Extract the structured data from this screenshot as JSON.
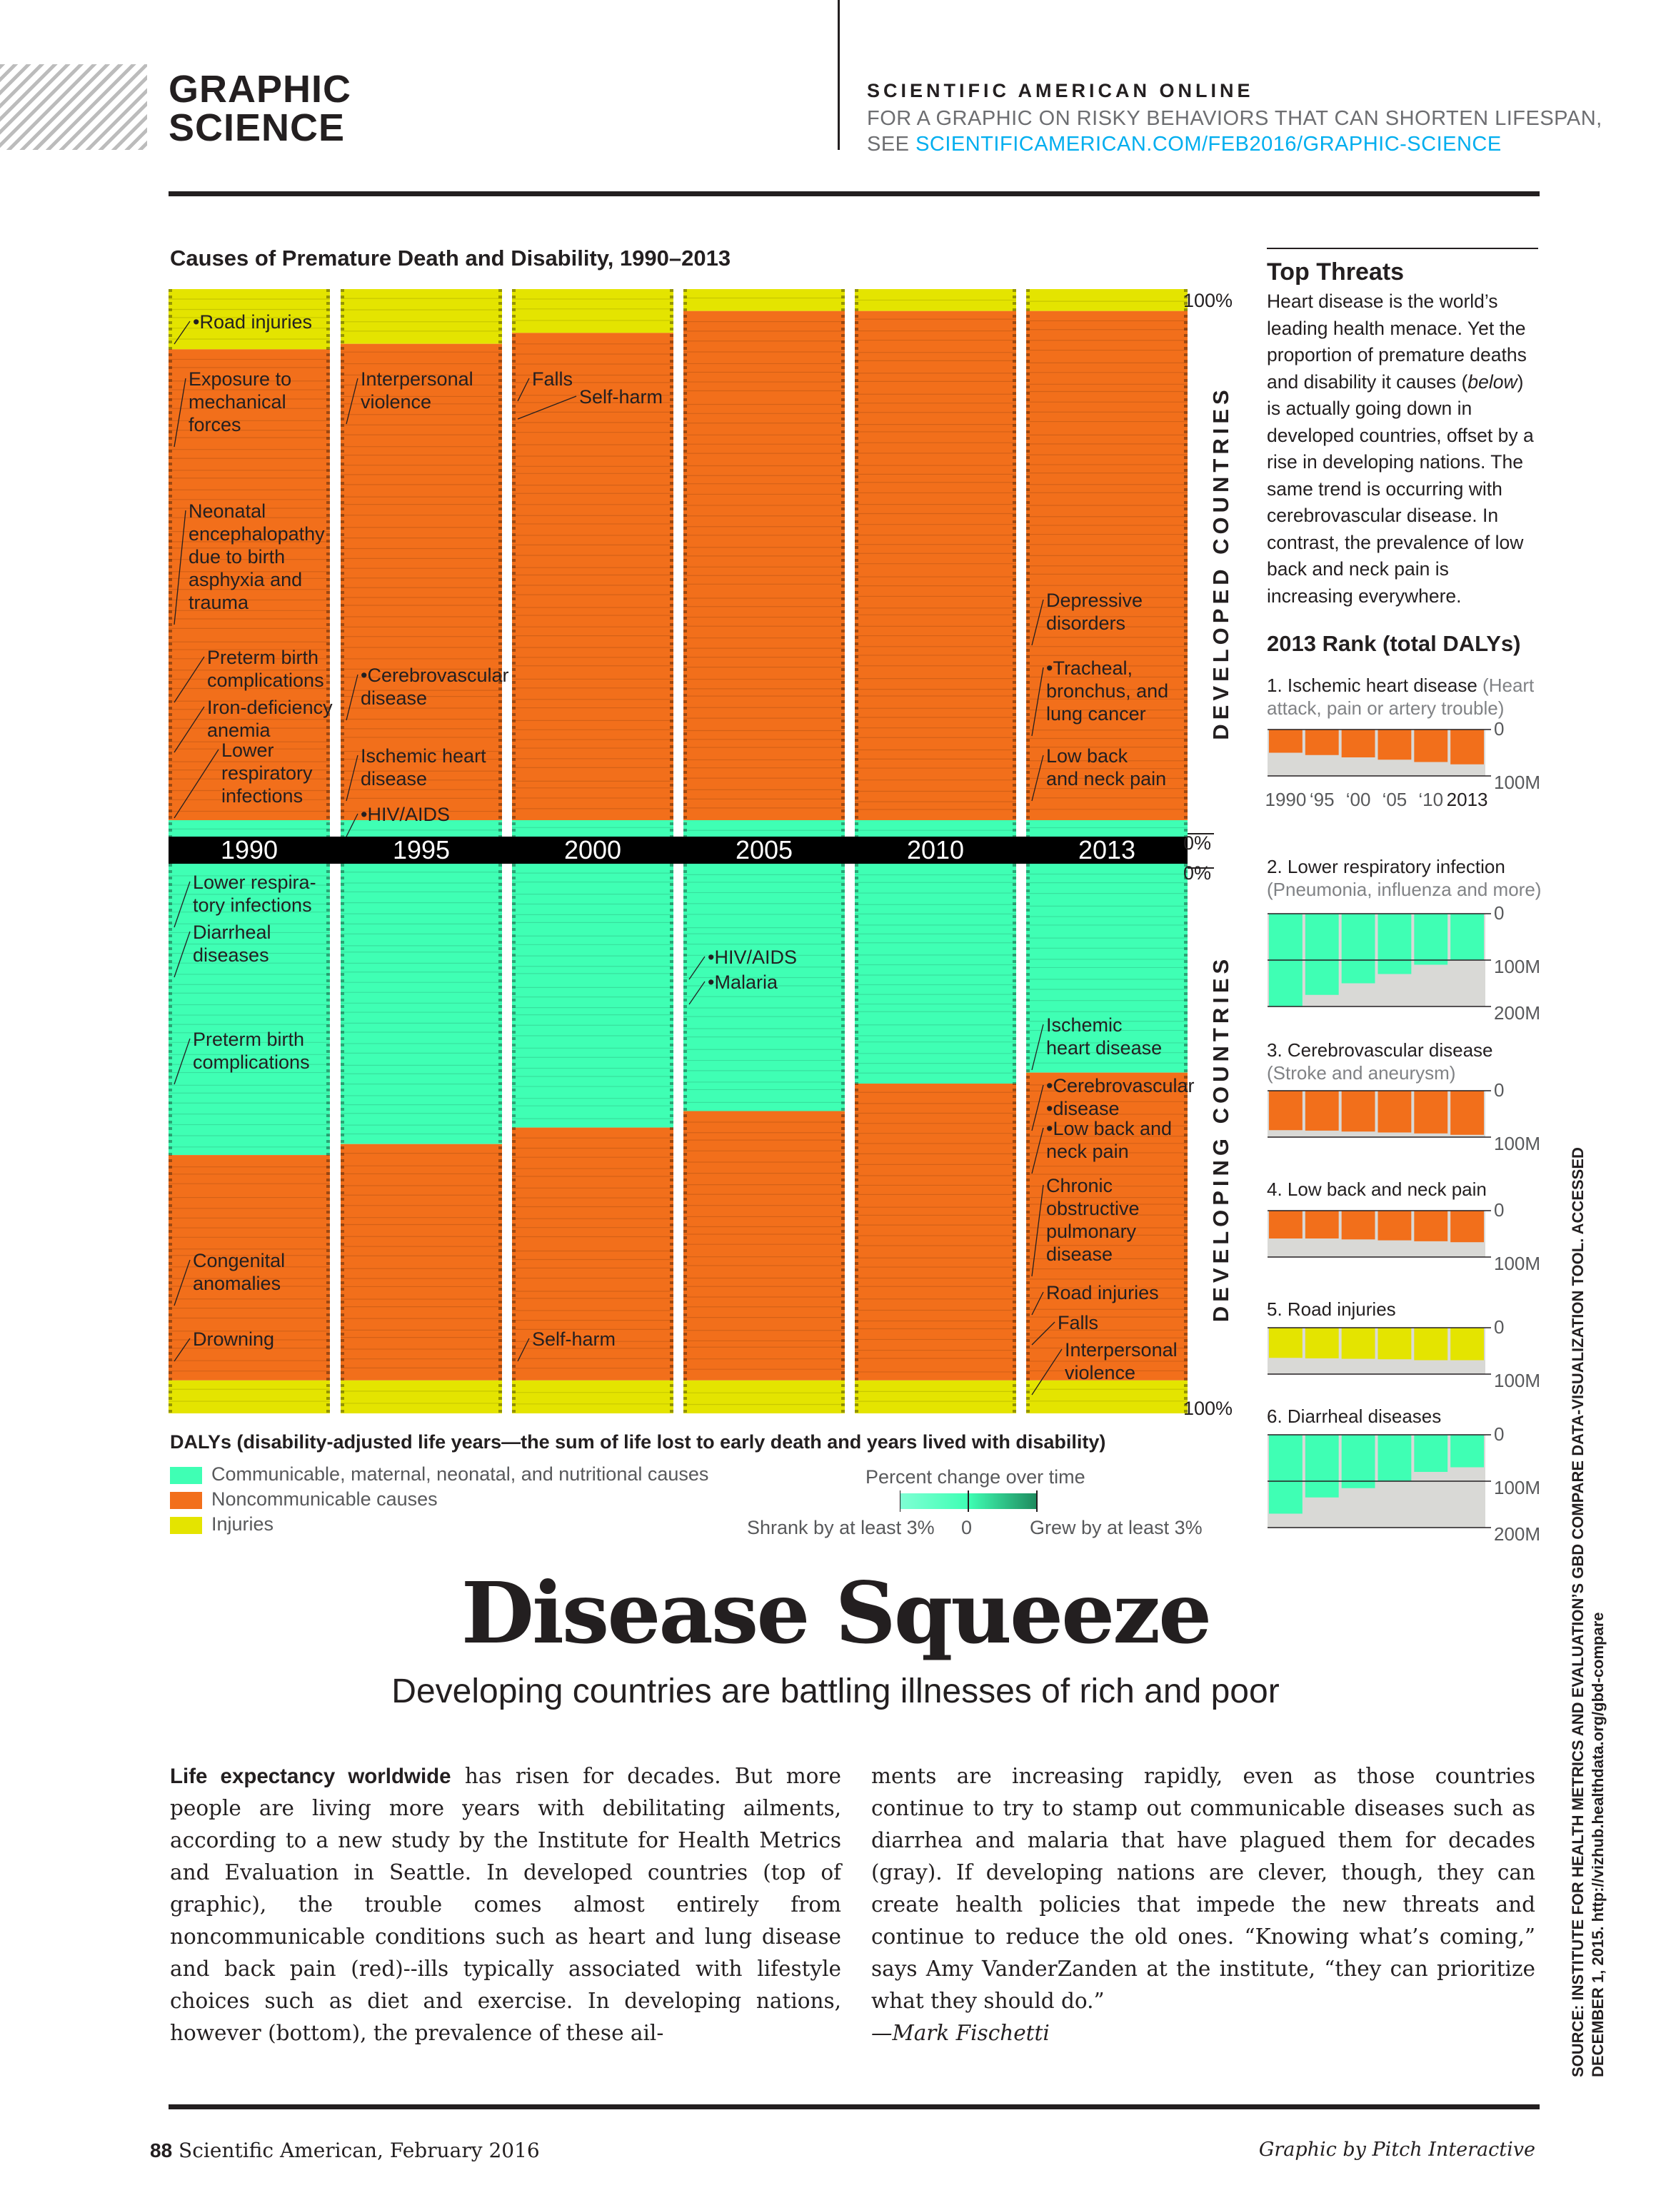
{
  "header": {
    "section_line1": "GRAPHIC",
    "section_line2": "SCIENCE",
    "online_label": "SCIENTIFIC AMERICAN ONLINE",
    "online_line1": "FOR A GRAPHIC ON RISKY BEHAVIORS THAT CAN SHORTEN LIFESPAN,",
    "online_line2_prefix": "SEE ",
    "online_url": "SCIENTIFICAMERICAN.COM/FEB2016/GRAPHIC-SCIENCE"
  },
  "colors": {
    "communicable": "#3fffb4",
    "noncommunicable": "#f26f1b",
    "injuries": "#e4e400",
    "year_band": "#000000",
    "grew": "#1e8a5e",
    "grid_gray": "#d9d9d6"
  },
  "chart_data": [
    {
      "type": "stacked-column",
      "title": "Causes of Premature Death and Disability, 1990–2013",
      "categories": [
        "1990",
        "1995",
        "2000",
        "2005",
        "2010",
        "2013"
      ],
      "panels": [
        {
          "name": "DEVELOPED COUNTRIES",
          "axis_top": "100%",
          "axis_bottom": "0%",
          "series": [
            {
              "name": "Injuries",
              "values": [
                11,
                10,
                8,
                4,
                4,
                4
              ]
            },
            {
              "name": "Noncommunicable causes",
              "values": [
                86,
                87,
                89,
                93,
                93,
                93
              ]
            },
            {
              "name": "Communicable, maternal, neonatal, and nutritional causes",
              "values": [
                3,
                3,
                3,
                3,
                3,
                3
              ]
            }
          ]
        },
        {
          "name": "DEVELOPING COUNTRIES",
          "axis_top": "0%",
          "axis_bottom": "100%",
          "series": [
            {
              "name": "Communicable, maternal, neonatal, and nutritional causes",
              "values": [
                53,
                51,
                48,
                45,
                40,
                38
              ]
            },
            {
              "name": "Noncommunicable causes",
              "values": [
                41,
                43,
                46,
                49,
                54,
                56
              ]
            },
            {
              "name": "Injuries",
              "values": [
                6,
                6,
                6,
                6,
                6,
                6
              ]
            }
          ]
        }
      ],
      "annotations_developed": [
        {
          "col": 0,
          "text": [
            "•Road injuries"
          ]
        },
        {
          "col": 0,
          "text": [
            "Exposure to",
            "mechanical",
            "forces"
          ]
        },
        {
          "col": 0,
          "text": [
            "Neonatal",
            "encephalopathy",
            "due to birth",
            "asphyxia and",
            "trauma"
          ]
        },
        {
          "col": 0,
          "text": [
            "Preterm birth",
            "complications"
          ]
        },
        {
          "col": 0,
          "text": [
            "Iron-deficiency",
            "anemia"
          ]
        },
        {
          "col": 0,
          "text": [
            "Lower",
            "respiratory",
            "infections"
          ]
        },
        {
          "col": 1,
          "text": [
            "Interpersonal",
            "violence"
          ]
        },
        {
          "col": 1,
          "text": [
            "•Cerebrovascular",
            "disease"
          ]
        },
        {
          "col": 1,
          "text": [
            "Ischemic heart",
            "disease"
          ]
        },
        {
          "col": 1,
          "text": [
            "•HIV/AIDS"
          ]
        },
        {
          "col": 2,
          "text": [
            "Falls"
          ]
        },
        {
          "col": 2,
          "text": [
            "Self-harm"
          ]
        },
        {
          "col": 5,
          "text": [
            "Depressive",
            "disorders"
          ]
        },
        {
          "col": 5,
          "text": [
            "•Tracheal,",
            "bronchus, and",
            "lung cancer"
          ]
        },
        {
          "col": 5,
          "text": [
            "Low back",
            "and neck pain"
          ]
        }
      ],
      "annotations_developing": [
        {
          "col": 0,
          "text": [
            "Lower respira-",
            "tory infections"
          ]
        },
        {
          "col": 0,
          "text": [
            "Diarrheal",
            "diseases"
          ]
        },
        {
          "col": 0,
          "text": [
            "Preterm birth",
            "complications"
          ]
        },
        {
          "col": 0,
          "text": [
            "Congenital",
            "anomalies"
          ]
        },
        {
          "col": 0,
          "text": [
            "Drowning"
          ]
        },
        {
          "col": 2,
          "text": [
            "Self-harm"
          ]
        },
        {
          "col": 3,
          "text": [
            "•HIV/AIDS"
          ]
        },
        {
          "col": 3,
          "text": [
            "•Malaria"
          ]
        },
        {
          "col": 5,
          "text": [
            "Ischemic",
            "heart disease"
          ]
        },
        {
          "col": 5,
          "text": [
            "•Cerebrovascular",
            "•disease"
          ]
        },
        {
          "col": 5,
          "text": [
            "•Low back and",
            "neck pain"
          ]
        },
        {
          "col": 5,
          "text": [
            "Chronic",
            "obstructive",
            "pulmonary",
            "disease"
          ]
        },
        {
          "col": 5,
          "text": [
            "Road injuries"
          ]
        },
        {
          "col": 5,
          "text": [
            "Falls"
          ]
        },
        {
          "col": 5,
          "text": [
            "Interpersonal",
            "violence"
          ]
        }
      ]
    },
    {
      "type": "bar",
      "title": "1. Ischemic heart disease",
      "subtitle": "(Heart attack, pain or artery trouble)",
      "categories": [
        "1990",
        "‘95",
        "‘00",
        "‘05",
        "‘10",
        "2013"
      ],
      "values": [
        50,
        55,
        60,
        65,
        70,
        75
      ],
      "ylim": [
        0,
        100
      ],
      "ticks": [
        "0",
        "100M"
      ],
      "color": "noncommunicable"
    },
    {
      "type": "bar",
      "title": "2. Lower respiratory infection",
      "subtitle": "(Pneumonia, influenza and more)",
      "values": [
        200,
        175,
        150,
        130,
        110,
        100
      ],
      "ylim": [
        0,
        200
      ],
      "ticks": [
        "0",
        "100M",
        "200M"
      ],
      "color": "communicable"
    },
    {
      "type": "bar",
      "title": "3. Cerebrovascular disease",
      "subtitle": "(Stroke and aneurysm)",
      "values": [
        85,
        86,
        88,
        90,
        92,
        95
      ],
      "ylim": [
        0,
        100
      ],
      "ticks": [
        "0",
        "100M"
      ],
      "color": "noncommunicable"
    },
    {
      "type": "bar",
      "title": "4. Low back and neck pain",
      "subtitle": "",
      "values": [
        60,
        60,
        62,
        64,
        66,
        68
      ],
      "ylim": [
        0,
        100
      ],
      "ticks": [
        "0",
        "100M"
      ],
      "color": "noncommunicable"
    },
    {
      "type": "bar",
      "title": "5. Road injuries",
      "subtitle": "",
      "values": [
        65,
        66,
        67,
        68,
        70,
        70
      ],
      "ylim": [
        0,
        100
      ],
      "ticks": [
        "0",
        "100M"
      ],
      "color": "injuries"
    },
    {
      "type": "bar",
      "title": "6. Diarrheal diseases",
      "subtitle": "",
      "values": [
        170,
        135,
        115,
        100,
        80,
        70
      ],
      "ylim": [
        0,
        200
      ],
      "ticks": [
        "0",
        "100M",
        "200M"
      ],
      "color": "communicable"
    }
  ],
  "top_threats": {
    "title": "Top Threats",
    "body_parts": [
      "Heart disease is the world’s leading health menace. Yet the proportion of premature deaths and disability it causes (",
      "below",
      ") is actually going down in developed countries, offset by a rise in developing nations. The same trend is occurring with cerebrovascular disease. In contrast, the prevalence of low back and neck pain is increasing everywhere."
    ],
    "rank_title": "2013 Rank (total DALYs)"
  },
  "legend": {
    "dalys_title": "DALYs (disability-adjusted life years—the sum of life lost to early death and years lived with disability)",
    "items": [
      "Communicable, maternal, neonatal, and nutritional causes",
      "Noncommunicable causes",
      "Injuries"
    ],
    "pct_title": "Percent change over time",
    "pct_left": "Shrank by at least 3%",
    "pct_mid": "0",
    "pct_right": "Grew by at least 3%"
  },
  "article": {
    "headline": "Disease Squeeze",
    "subhead": "Developing countries are battling illnesses of rich and poor",
    "lead": "Life expectancy worldwide",
    "col1_rest": " has risen for decades. But more people are living more years with debilitating ailments, according to a new study by the Institute for Health Metrics and Evaluation in Seattle. In developed countries (top of graphic), the trouble comes almost entirely from noncommunicable conditions such as heart and lung disease and back pain (red)--ills typically associated with lifestyle choices such as diet and exercise. In developing nations, however (bottom), the prevalence of these ail-",
    "col2": "ments are increasing rapidly, even as those countries continue to try to stamp out communicable diseases such as diarrhea and malaria that have plagued them for decades (gray). If developing nations are clever, though, they can create health policies that impede the new threats and continue to reduce the old ones. “Knowing what’s coming,” says Amy VanderZanden at the institute, “they can prioritize what they should do.”",
    "byline": "—Mark Fischetti"
  },
  "footer": {
    "page": "88",
    "magazine": " Scientific American, February 2016",
    "credit": "Graphic by Pitch Interactive",
    "source_line1": "SOURCE: INSTITUTE FOR HEALTH METRICS AND EVALUATION’S GBD COMPARE DATA-VISUALIZATION TOOL. ACCESSED",
    "source_line2": "DECEMBER 1, 2015. http://vizhub.healthdata.org/gbd-compare"
  }
}
